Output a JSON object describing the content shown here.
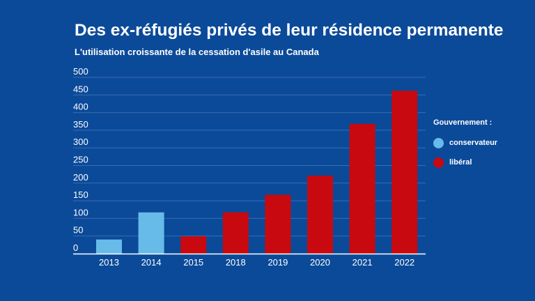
{
  "chart_data": {
    "type": "bar",
    "title": "Des ex-réfugiés privés de leur résidence permanente",
    "subtitle": "L'utilisation croissante de la cessation d'asile au Canada",
    "xlabel": "",
    "ylabel": "",
    "ylim": [
      0,
      500
    ],
    "yticks": [
      0,
      50,
      100,
      150,
      200,
      250,
      300,
      350,
      400,
      450,
      500
    ],
    "grid": true,
    "categories": [
      "2013",
      "2014",
      "2015",
      "2018",
      "2019",
      "2020",
      "2021",
      "2022"
    ],
    "values": [
      40,
      117,
      49,
      117,
      167,
      221,
      368,
      462
    ],
    "groups": [
      "conservateur",
      "conservateur",
      "libéral",
      "libéral",
      "libéral",
      "libéral",
      "libéral",
      "libéral"
    ],
    "legend": {
      "title": "Gouvernement :",
      "placement": "right",
      "items": [
        {
          "label": "conservateur",
          "color": "#66bbe8"
        },
        {
          "label": "libéral",
          "color": "#c8090f"
        }
      ]
    },
    "colors": {
      "conservateur": "#66bbe8",
      "libéral": "#c8090f",
      "background": "#0b4a99",
      "grid": "#3b6db0",
      "axis": "#ffffff"
    }
  }
}
